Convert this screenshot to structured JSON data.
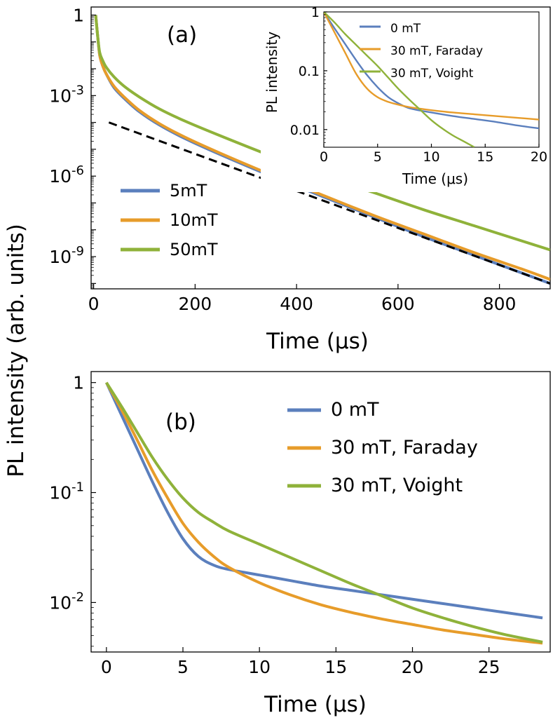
{
  "figure": {
    "ylabel": "PL intensity (arb. units)"
  },
  "chart_data": [
    {
      "panel": "a",
      "panel_label": "(a)",
      "type": "line",
      "xlabel": "Time (μs)",
      "ylabel": "PL intensity (arb. units)",
      "yscale": "log",
      "xlim": [
        -5,
        900
      ],
      "ylim_log10": [
        -10.2,
        0.3
      ],
      "xticks": [
        0,
        200,
        400,
        600,
        800
      ],
      "xtick_labels": [
        "0",
        "200",
        "400",
        "600",
        "800"
      ],
      "yticks_log10": [
        0,
        -3,
        -6,
        -9
      ],
      "ytick_labels": [
        {
          "base": "1",
          "exp": ""
        },
        {
          "base": "10",
          "exp": "-3"
        },
        {
          "base": "10",
          "exp": "-6"
        },
        {
          "base": "10",
          "exp": "-9"
        }
      ],
      "legend_position": "left",
      "series": [
        {
          "name": "5mT",
          "color": "#5b7fbd",
          "x": [
            4,
            8,
            12,
            18,
            25,
            40,
            60,
            90,
            130,
            180,
            250,
            350,
            450,
            550,
            650,
            750,
            850,
            900
          ],
          "log10_y": [
            0,
            -0.8,
            -1.5,
            -1.9,
            -2.2,
            -2.7,
            -3.1,
            -3.6,
            -4.1,
            -4.6,
            -5.2,
            -6.0,
            -6.75,
            -7.5,
            -8.25,
            -8.95,
            -9.65,
            -10.0
          ]
        },
        {
          "name": "10mT",
          "color": "#e79c2a",
          "x": [
            4,
            8,
            12,
            18,
            25,
            40,
            60,
            90,
            130,
            180,
            250,
            350,
            450,
            550,
            650,
            750,
            850,
            900
          ],
          "log10_y": [
            0,
            -0.8,
            -1.5,
            -1.9,
            -2.2,
            -2.65,
            -3.05,
            -3.55,
            -4.05,
            -4.55,
            -5.15,
            -5.95,
            -6.7,
            -7.45,
            -8.15,
            -8.85,
            -9.5,
            -9.85
          ]
        },
        {
          "name": "50mT",
          "color": "#8fb23a",
          "x": [
            4,
            8,
            12,
            18,
            25,
            40,
            60,
            90,
            130,
            180,
            250,
            350,
            450,
            550,
            650,
            750,
            850,
            900
          ],
          "log10_y": [
            0,
            -0.8,
            -1.4,
            -1.7,
            -1.95,
            -2.3,
            -2.65,
            -3.05,
            -3.5,
            -3.95,
            -4.5,
            -5.25,
            -5.95,
            -6.6,
            -7.25,
            -7.85,
            -8.45,
            -8.75
          ]
        },
        {
          "name": "",
          "color": "#000000",
          "dashed": true,
          "x": [
            30,
            900
          ],
          "log10_y": [
            -4.0,
            -10.0
          ]
        }
      ]
    },
    {
      "panel": "a-inset",
      "type": "line",
      "xlabel": "Time (μs)",
      "ylabel": "PL intensity",
      "yscale": "log",
      "xlim": [
        0,
        20
      ],
      "ylim_log10": [
        -2.3,
        0
      ],
      "xticks": [
        0,
        5,
        10,
        15,
        20
      ],
      "xtick_labels": [
        "0",
        "5",
        "10",
        "15",
        "20"
      ],
      "yticks_log10": [
        0,
        -1,
        -2
      ],
      "ytick_labels": [
        "1",
        "0.1",
        "0.01"
      ],
      "legend_position": "top-right",
      "series": [
        {
          "name": "0 mT",
          "color": "#5b7fbd",
          "x": [
            0,
            1,
            2,
            3,
            4,
            5,
            6,
            7,
            8,
            10,
            12,
            14,
            16,
            18,
            20
          ],
          "log10_y": [
            0,
            -0.28,
            -0.55,
            -0.82,
            -1.07,
            -1.28,
            -1.45,
            -1.56,
            -1.64,
            -1.71,
            -1.77,
            -1.82,
            -1.87,
            -1.93,
            -1.98
          ]
        },
        {
          "name": "30 mT, Faraday",
          "color": "#e79c2a",
          "x": [
            0,
            1,
            2,
            3,
            4,
            5,
            6,
            7,
            8,
            10,
            12,
            14,
            16,
            18,
            20
          ],
          "log10_y": [
            0,
            -0.35,
            -0.7,
            -1.05,
            -1.3,
            -1.45,
            -1.53,
            -1.58,
            -1.62,
            -1.67,
            -1.71,
            -1.74,
            -1.77,
            -1.8,
            -1.83
          ]
        },
        {
          "name": "30 mT, Voight",
          "color": "#8fb23a",
          "x": [
            0,
            1,
            2,
            3,
            4,
            5,
            6,
            7,
            8,
            9,
            10,
            11,
            12,
            13,
            14
          ],
          "log10_y": [
            0,
            -0.18,
            -0.38,
            -0.56,
            -0.74,
            -0.92,
            -1.12,
            -1.32,
            -1.5,
            -1.67,
            -1.84,
            -1.98,
            -2.1,
            -2.2,
            -2.3
          ]
        }
      ]
    },
    {
      "panel": "b",
      "panel_label": "(b)",
      "type": "line",
      "xlabel": "Time (μs)",
      "ylabel": "PL intensity (arb. units)",
      "yscale": "log",
      "xlim": [
        -1,
        29
      ],
      "ylim_log10": [
        -2.45,
        0.1
      ],
      "xticks": [
        0,
        5,
        10,
        15,
        20,
        25
      ],
      "xtick_labels": [
        "0",
        "5",
        "10",
        "15",
        "20",
        "25"
      ],
      "yticks_log10": [
        0,
        -1,
        -2
      ],
      "ytick_labels": [
        {
          "base": "1",
          "exp": ""
        },
        {
          "base": "10",
          "exp": "-1"
        },
        {
          "base": "10",
          "exp": "-2"
        }
      ],
      "legend_position": "top-right",
      "series": [
        {
          "name": "0 mT",
          "color": "#5b7fbd",
          "x": [
            0,
            1,
            2,
            3,
            4,
            5,
            6,
            7,
            8,
            10,
            12,
            14,
            16,
            18,
            20,
            22,
            24,
            26,
            28.5
          ],
          "log10_y": [
            0,
            -0.3,
            -0.6,
            -0.9,
            -1.18,
            -1.42,
            -1.58,
            -1.66,
            -1.7,
            -1.75,
            -1.8,
            -1.85,
            -1.89,
            -1.93,
            -1.97,
            -2.01,
            -2.05,
            -2.09,
            -2.14
          ]
        },
        {
          "name": "30 mT, Faraday",
          "color": "#e79c2a",
          "x": [
            0,
            1,
            2,
            3,
            4,
            5,
            6,
            7,
            8,
            10,
            12,
            14,
            16,
            18,
            20,
            22,
            24,
            26,
            28.5
          ],
          "log10_y": [
            0,
            -0.25,
            -0.52,
            -0.8,
            -1.05,
            -1.28,
            -1.45,
            -1.58,
            -1.68,
            -1.82,
            -1.93,
            -2.02,
            -2.09,
            -2.15,
            -2.2,
            -2.25,
            -2.29,
            -2.33,
            -2.37
          ]
        },
        {
          "name": "30 mT, Voight",
          "color": "#8fb23a",
          "x": [
            0,
            1,
            2,
            3,
            4,
            5,
            6,
            7,
            8,
            10,
            12,
            14,
            16,
            18,
            20,
            22,
            24,
            26,
            28.5
          ],
          "log10_y": [
            0,
            -0.22,
            -0.45,
            -0.68,
            -0.88,
            -1.05,
            -1.18,
            -1.27,
            -1.35,
            -1.47,
            -1.59,
            -1.71,
            -1.83,
            -1.94,
            -2.05,
            -2.14,
            -2.22,
            -2.29,
            -2.36
          ]
        }
      ]
    }
  ]
}
